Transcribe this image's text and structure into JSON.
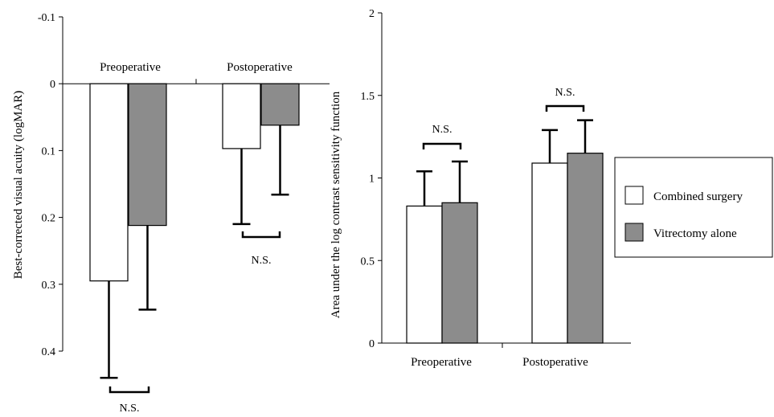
{
  "chart_data": [
    {
      "type": "bar",
      "ylabel": "Best-corrected visual acuity (logMAR)",
      "yaxis_inverted": true,
      "ylim": [
        -0.1,
        0.4
      ],
      "yticks": [
        "-0.1",
        "0",
        "0.1",
        "0.2",
        "0.3",
        "0.4"
      ],
      "grid": false,
      "categories": [
        "Preoperative",
        "Postoperative"
      ],
      "series": [
        {
          "name": "Combined surgery",
          "color": "#ffffff",
          "values": [
            0.295,
            0.097
          ],
          "error": [
            0.145,
            0.113
          ]
        },
        {
          "name": "Vitrectomy alone",
          "color": "#8c8c8c",
          "values": [
            0.212,
            0.062
          ],
          "error": [
            0.126,
            0.104
          ]
        }
      ],
      "annotations": [
        "N.S.",
        "N.S."
      ]
    },
    {
      "type": "bar",
      "ylabel": "Area under the log contrast sensitivity function",
      "ylim": [
        0,
        2
      ],
      "yticks": [
        "0",
        "0.5",
        "1",
        "1.5",
        "2"
      ],
      "grid": false,
      "categories": [
        "Preoperative",
        "Postoperative"
      ],
      "series": [
        {
          "name": "Combined surgery",
          "color": "#ffffff",
          "values": [
            0.83,
            1.09
          ],
          "error": [
            0.21,
            0.2
          ]
        },
        {
          "name": "Vitrectomy alone",
          "color": "#8c8c8c",
          "values": [
            0.85,
            1.15
          ],
          "error": [
            0.25,
            0.2
          ]
        }
      ],
      "annotations": [
        "N.S.",
        "N.S."
      ]
    }
  ],
  "legend": {
    "placement": "right",
    "items": [
      {
        "label": "Combined surgery",
        "color": "#ffffff"
      },
      {
        "label": "Vitrectomy alone",
        "color": "#8c8c8c"
      }
    ]
  }
}
